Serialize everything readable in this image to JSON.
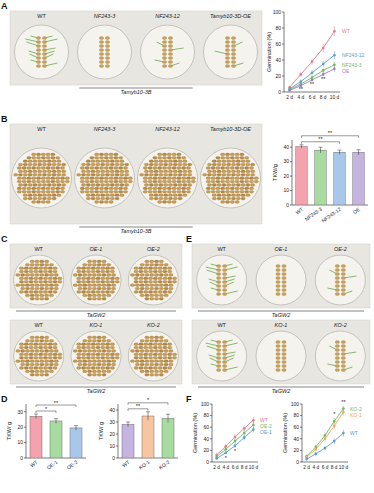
{
  "panel_letters": [
    "A",
    "B",
    "C",
    "D",
    "E",
    "F"
  ],
  "photos": [
    {
      "labels": [
        "WT",
        "NF243-3",
        "NF243-12",
        "Tamyb10-3D-OE"
      ],
      "group": "Tamyb10-3B"
    },
    {
      "labels": [
        "WT",
        "NF243-3",
        "NF243-12",
        "Tamyb10-3D-OE"
      ],
      "group": "Tamyb10-3B"
    },
    {
      "labels": [
        "WT",
        "OE-1",
        "OE-2"
      ],
      "group": "TaGW2"
    },
    {
      "labels": [
        "WT",
        "KO-1",
        "KO-2"
      ],
      "group": "TaGW2"
    },
    {
      "labels": [
        "WT",
        "OE-1",
        "OE-2"
      ],
      "group": "TaGW2"
    },
    {
      "labels": [
        "WT",
        "KO-1",
        "KO-2"
      ],
      "group": "TaGW2"
    }
  ],
  "chart_data": [
    {
      "type": "line",
      "y_label": "Germination (%)",
      "categories": [
        "2 d",
        "4 d",
        "6 d",
        "8 d",
        "10 d"
      ],
      "ylim": [
        0,
        100
      ],
      "yticks": [
        0,
        20,
        40,
        60,
        80,
        100
      ],
      "series": [
        {
          "name": "WT",
          "color": "#e8788a",
          "values": [
            6,
            22,
            38,
            55,
            76
          ],
          "errors": [
            2,
            3,
            4,
            5,
            6
          ]
        },
        {
          "name": "NF243-12",
          "color": "#5b9bd5",
          "values": [
            4,
            13,
            24,
            35,
            46
          ],
          "errors": [
            2,
            3,
            3,
            4,
            5
          ]
        },
        {
          "name": "NF243-3",
          "color": "#70b85f",
          "values": [
            3,
            10,
            18,
            27,
            34
          ],
          "errors": [
            1,
            2,
            3,
            3,
            4
          ]
        },
        {
          "name": "OE",
          "color": "#9b7fc4",
          "values": [
            2,
            8,
            15,
            22,
            29
          ],
          "errors": [
            1,
            2,
            2,
            3,
            4
          ]
        }
      ],
      "annotations": [
        {
          "text": "**",
          "x": 1,
          "y": 1
        },
        {
          "text": "**",
          "x": 2,
          "y": 7
        },
        {
          "text": "**",
          "x": 3,
          "y": 14
        }
      ]
    },
    {
      "type": "bar",
      "y_label": "TKW/g",
      "categories": [
        "WT",
        "NF243-3",
        "NF243-12",
        "OE"
      ],
      "values": [
        40.5,
        38,
        36.5,
        36.5
      ],
      "errors": [
        1.2,
        2,
        1.5,
        1.8
      ],
      "colors": [
        "#f4a3ae",
        "#a8dba0",
        "#a9c7e8",
        "#c5b3e0"
      ],
      "ylim": [
        0,
        45
      ],
      "yticks": [
        0,
        10,
        20,
        30,
        40
      ],
      "annotations": [
        {
          "text": "**",
          "from": 0,
          "to": 2
        },
        {
          "text": "**",
          "from": 0,
          "to": 3
        }
      ]
    },
    {
      "type": "bar",
      "y_label": "TKW/ g",
      "categories": [
        "WT",
        "OE-1",
        "OE-2"
      ],
      "values": [
        27,
        24,
        19.5
      ],
      "errors": [
        1.5,
        1.5,
        1.5
      ],
      "colors": [
        "#f4a3ae",
        "#a8dba0",
        "#a9c7e8"
      ],
      "ylim": [
        0,
        35
      ],
      "yticks": [
        0,
        10,
        20,
        30
      ],
      "annotations": [
        {
          "text": "*",
          "from": 0,
          "to": 1
        },
        {
          "text": "**",
          "from": 0,
          "to": 2
        }
      ]
    },
    {
      "type": "bar",
      "y_label": "TKW/ g",
      "categories": [
        "WT",
        "KO-1",
        "KO-2"
      ],
      "values": [
        28,
        35,
        33
      ],
      "errors": [
        2,
        3.5,
        3.5
      ],
      "colors": [
        "#c5b3e0",
        "#f7c59f",
        "#a8dba0"
      ],
      "ylim": [
        0,
        45
      ],
      "yticks": [
        0,
        10,
        20,
        30,
        40
      ],
      "annotations": [
        {
          "text": "**",
          "from": 0,
          "to": 1
        },
        {
          "text": "*",
          "from": 0,
          "to": 2
        }
      ]
    },
    {
      "type": "line",
      "y_label": "Germination (%)",
      "categories": [
        "2 d",
        "4 d",
        "6 d",
        "8 d",
        "10 d"
      ],
      "ylim": [
        0,
        100
      ],
      "yticks": [
        0,
        20,
        40,
        60,
        80,
        100
      ],
      "series": [
        {
          "name": "WT",
          "color": "#e8788a",
          "values": [
            12,
            27,
            43,
            58,
            72
          ],
          "errors": [
            3,
            4,
            5,
            5,
            6
          ]
        },
        {
          "name": "OE-2",
          "color": "#70b85f",
          "values": [
            9,
            22,
            36,
            50,
            64
          ],
          "errors": [
            3,
            4,
            4,
            5,
            6
          ]
        },
        {
          "name": "OE-1",
          "color": "#5b9bd5",
          "values": [
            6,
            16,
            28,
            42,
            56
          ],
          "errors": [
            2,
            3,
            4,
            5,
            5
          ]
        }
      ],
      "annotations": [
        {
          "text": "*",
          "x": 1,
          "y": 3
        },
        {
          "text": "*",
          "x": 2,
          "y": 15
        }
      ]
    },
    {
      "type": "line",
      "y_label": "Germination (%)",
      "categories": [
        "2 d",
        "4 d",
        "6 d",
        "8 d",
        "10 d"
      ],
      "ylim": [
        0,
        100
      ],
      "yticks": [
        0,
        20,
        40,
        60,
        80,
        100
      ],
      "series": [
        {
          "name": "KO-2",
          "color": "#70b85f",
          "values": [
            10,
            26,
            46,
            70,
            92
          ],
          "errors": [
            3,
            4,
            5,
            6,
            5
          ]
        },
        {
          "name": "KO-1",
          "color": "#f4a460",
          "values": [
            8,
            22,
            40,
            62,
            86
          ],
          "errors": [
            3,
            4,
            5,
            6,
            6
          ]
        },
        {
          "name": "WT",
          "color": "#5b9bd5",
          "values": [
            5,
            14,
            24,
            36,
            50
          ],
          "errors": [
            2,
            3,
            4,
            5,
            6
          ]
        }
      ],
      "annotations": [
        {
          "text": "*",
          "x": 3,
          "y": 80
        },
        {
          "text": "**",
          "x": 4,
          "y": 100
        }
      ]
    }
  ]
}
